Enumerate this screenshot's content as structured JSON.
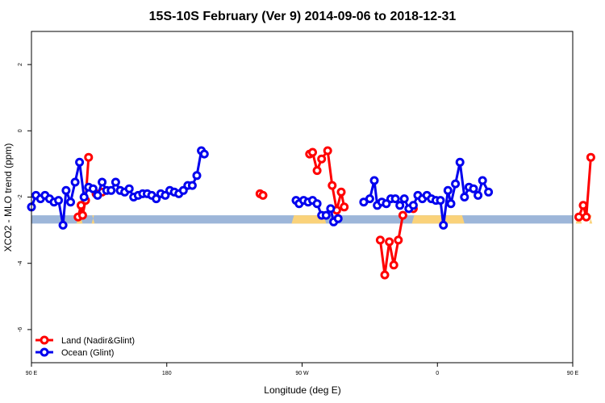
{
  "chart_data": {
    "type": "line",
    "title": "15S-10S February (Ver 9)   2014-09-06 to 2018-12-31",
    "xlabel": "Longitude (deg E)",
    "ylabel": "XCO2 - MLO trend (ppm)",
    "xlim": [
      90,
      450
    ],
    "ylim": [
      -7.0,
      3.0
    ],
    "x_tick_values": [
      90,
      180,
      270,
      360,
      450,
      540
    ],
    "x_tick_labels": [
      "90 E",
      "180",
      "90 W",
      "0",
      "90 E",
      "180"
    ],
    "y_tick_values": [
      2,
      0,
      -2,
      -4,
      -6
    ],
    "y_tick_labels": [
      "2",
      "0",
      "-2",
      "-4",
      "-6"
    ],
    "grid": false,
    "legend_position": "bottom-left",
    "band_y": [
      -2.55,
      -2.8
    ],
    "band_colors": {
      "ocean": "#9db6d9",
      "land": "#fad27a"
    },
    "land_band_ranges": [
      [
        120,
        124
      ],
      [
        130,
        132
      ],
      [
        263,
        286
      ],
      [
        343,
        378
      ],
      [
        452,
        456
      ],
      [
        461,
        463
      ]
    ],
    "series": [
      {
        "name": "Land (Nadir&Glint)",
        "color": "#ff0000",
        "segments": [
          [
            [
              121,
              -2.6
            ],
            [
              123,
              -2.25
            ],
            [
              124,
              -2.55
            ],
            [
              126,
              -2.1
            ],
            [
              128,
              -0.8
            ]
          ],
          [
            [
              133,
              -1.9
            ],
            [
              137,
              -1.85
            ]
          ],
          [
            [
              242,
              -1.9
            ],
            [
              244,
              -1.95
            ]
          ],
          [
            [
              275,
              -0.7
            ],
            [
              277,
              -0.65
            ],
            [
              280,
              -1.2
            ],
            [
              283,
              -0.85
            ],
            [
              287,
              -0.6
            ],
            [
              290,
              -1.65
            ],
            [
              293,
              -2.4
            ],
            [
              296,
              -1.85
            ],
            [
              298,
              -2.3
            ]
          ],
          [
            [
              322,
              -3.3
            ],
            [
              325,
              -4.35
            ],
            [
              328,
              -3.35
            ],
            [
              331,
              -4.05
            ],
            [
              334,
              -3.3
            ],
            [
              337,
              -2.55
            ]
          ],
          [
            [
              344,
              -2.35
            ]
          ],
          [
            [
              454,
              -2.6
            ],
            [
              457,
              -2.25
            ],
            [
              459,
              -2.6
            ],
            [
              462,
              -0.8
            ]
          ]
        ]
      },
      {
        "name": "Ocean (Glint)",
        "color": "#0000ee",
        "segments": [
          [
            [
              90,
              -2.3
            ],
            [
              93,
              -1.95
            ],
            [
              96,
              -2.05
            ],
            [
              99,
              -1.95
            ],
            [
              102,
              -2.05
            ],
            [
              105,
              -2.15
            ],
            [
              108,
              -2.1
            ],
            [
              111,
              -2.85
            ],
            [
              113,
              -1.8
            ],
            [
              116,
              -2.15
            ],
            [
              119,
              -1.55
            ],
            [
              122,
              -0.95
            ],
            [
              125,
              -2.0
            ],
            [
              128,
              -1.7
            ],
            [
              131,
              -1.75
            ],
            [
              134,
              -1.95
            ],
            [
              137,
              -1.55
            ],
            [
              140,
              -1.8
            ],
            [
              143,
              -1.8
            ],
            [
              146,
              -1.55
            ],
            [
              149,
              -1.8
            ],
            [
              152,
              -1.85
            ],
            [
              155,
              -1.75
            ],
            [
              158,
              -2.0
            ],
            [
              161,
              -1.95
            ],
            [
              164,
              -1.9
            ],
            [
              167,
              -1.9
            ],
            [
              170,
              -1.95
            ],
            [
              173,
              -2.05
            ],
            [
              176,
              -1.9
            ],
            [
              179,
              -1.95
            ],
            [
              182,
              -1.8
            ],
            [
              185,
              -1.85
            ],
            [
              188,
              -1.9
            ],
            [
              191,
              -1.8
            ],
            [
              194,
              -1.65
            ],
            [
              197,
              -1.65
            ],
            [
              200,
              -1.35
            ],
            [
              203,
              -0.6
            ],
            [
              205,
              -0.7
            ]
          ],
          [
            [
              266,
              -2.1
            ],
            [
              268,
              -2.2
            ],
            [
              271,
              -2.1
            ],
            [
              274,
              -2.15
            ],
            [
              277,
              -2.1
            ],
            [
              280,
              -2.2
            ],
            [
              283,
              -2.55
            ],
            [
              286,
              -2.55
            ],
            [
              289,
              -2.35
            ],
            [
              291,
              -2.75
            ],
            [
              294,
              -2.65
            ]
          ],
          [
            [
              311,
              -2.15
            ],
            [
              315,
              -2.05
            ],
            [
              318,
              -1.5
            ],
            [
              320,
              -2.25
            ],
            [
              323,
              -2.15
            ],
            [
              326,
              -2.2
            ],
            [
              329,
              -2.05
            ],
            [
              332,
              -2.05
            ],
            [
              335,
              -2.25
            ],
            [
              338,
              -2.05
            ],
            [
              341,
              -2.35
            ],
            [
              344,
              -2.25
            ],
            [
              347,
              -1.95
            ],
            [
              350,
              -2.05
            ],
            [
              353,
              -1.95
            ],
            [
              356,
              -2.05
            ],
            [
              359,
              -2.1
            ],
            [
              362,
              -2.1
            ],
            [
              364,
              -2.85
            ],
            [
              367,
              -1.8
            ],
            [
              369,
              -2.2
            ],
            [
              372,
              -1.6
            ],
            [
              375,
              -0.95
            ],
            [
              378,
              -2.0
            ],
            [
              381,
              -1.7
            ],
            [
              384,
              -1.75
            ],
            [
              387,
              -1.95
            ],
            [
              390,
              -1.5
            ],
            [
              394,
              -1.85
            ]
          ]
        ]
      }
    ]
  }
}
